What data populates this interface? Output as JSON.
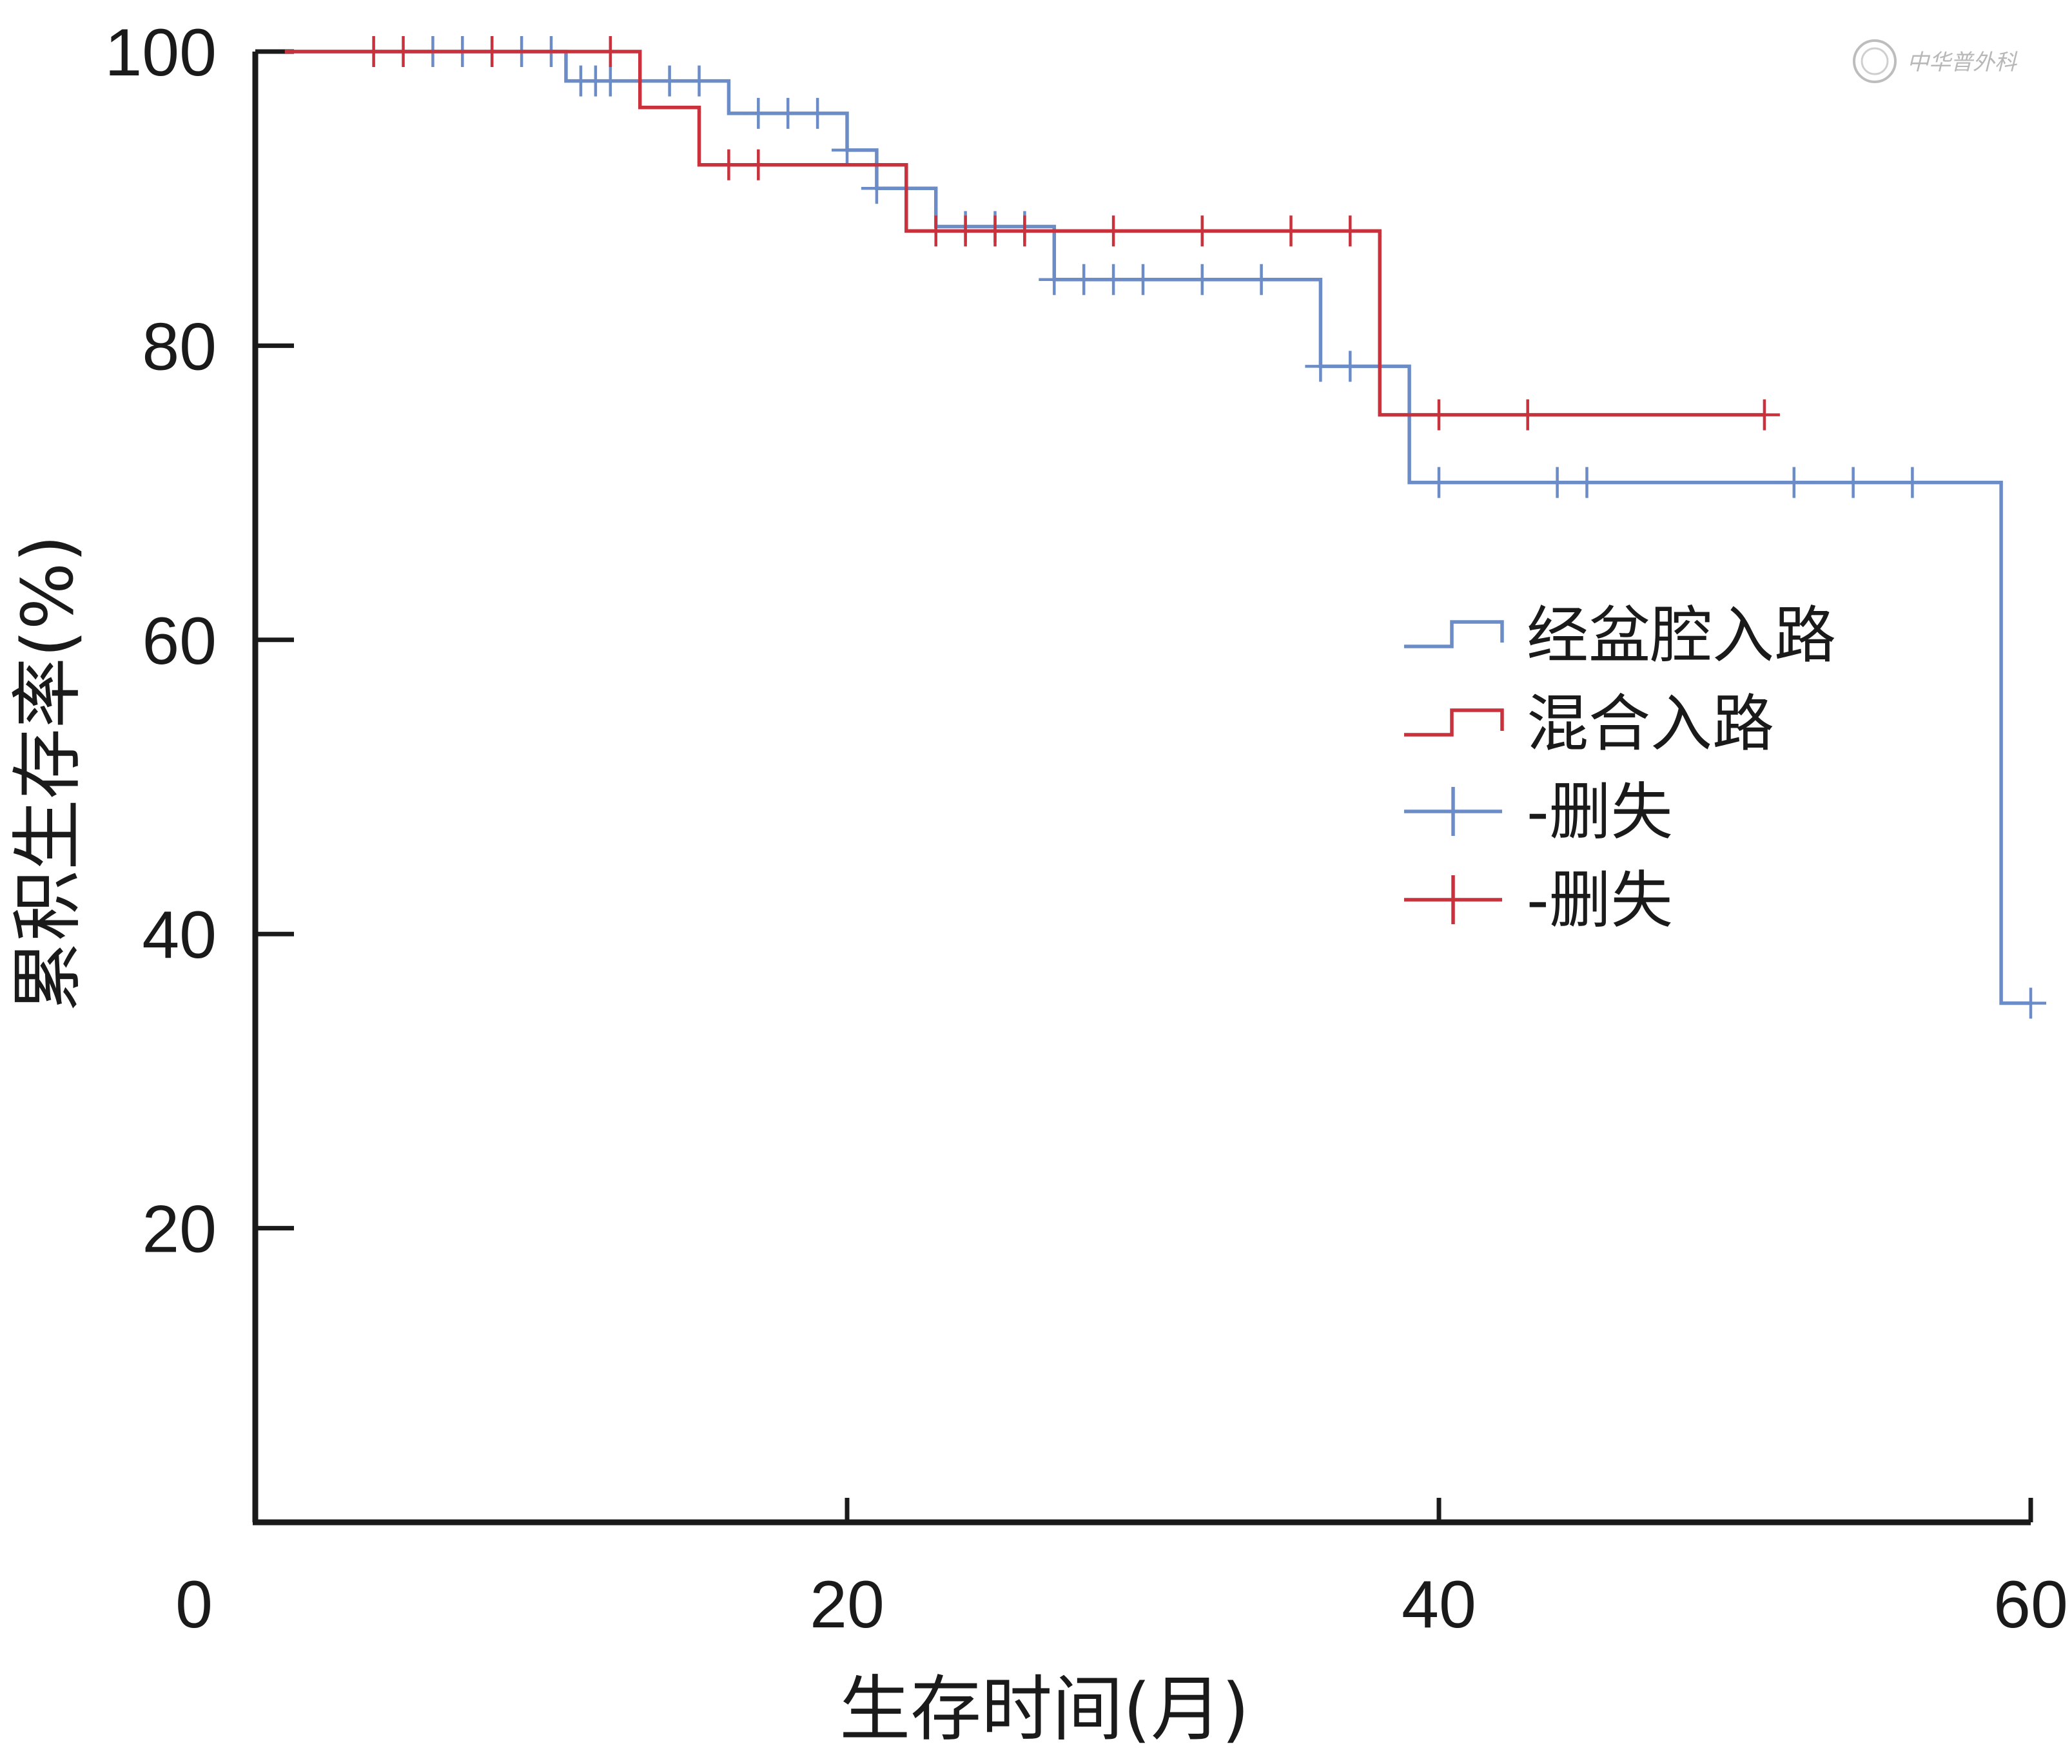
{
  "watermark": {
    "text": "中华普外科"
  },
  "chart_data": {
    "type": "line",
    "subtype": "kaplan-meier",
    "title": "",
    "xlabel": "生存时间(月)",
    "ylabel": "累积生存率(%)",
    "xlim": [
      0,
      60
    ],
    "ylim": [
      0,
      100
    ],
    "xticks": [
      0,
      20,
      40,
      60
    ],
    "yticks": [
      20,
      40,
      60,
      80,
      100
    ],
    "grid": false,
    "legend_position": "right",
    "series": [
      {
        "name": "经盆腔入路",
        "color": "#6b8cc7",
        "step_x": [
          1,
          10.5,
          12,
          16,
          20,
          21,
          23,
          27,
          36,
          39,
          59,
          60
        ],
        "step_y": [
          100,
          98,
          98,
          95.8,
          93.3,
          90.7,
          88.1,
          84.5,
          78.6,
          70.7,
          35.3,
          35.3
        ],
        "censored_x": [
          6,
          7,
          8,
          9,
          10,
          11,
          11.5,
          12,
          13,
          14,
          15,
          17,
          18,
          19,
          20,
          21,
          24,
          25,
          26,
          27,
          28,
          29,
          30,
          32,
          34,
          36,
          37,
          38,
          40,
          44,
          45,
          52,
          54,
          56,
          60
        ],
        "censored_y": [
          100,
          100,
          100,
          100,
          100,
          98,
          98,
          98,
          98,
          98,
          98,
          95.8,
          95.8,
          95.8,
          93.3,
          90.7,
          88.1,
          88.1,
          88.1,
          84.5,
          84.5,
          84.5,
          84.5,
          84.5,
          84.5,
          78.6,
          78.6,
          78.6,
          70.7,
          70.7,
          70.7,
          70.7,
          70.7,
          70.7,
          35.3
        ]
      },
      {
        "name": "混合入路",
        "color": "#c8323c",
        "step_x": [
          1,
          13,
          15,
          22,
          38,
          51
        ],
        "step_y": [
          100,
          96.2,
          92.3,
          87.8,
          75.3,
          75.3
        ],
        "censored_x": [
          4,
          5,
          8,
          12,
          16,
          17,
          23,
          24,
          25,
          26,
          29,
          32,
          35,
          37,
          40,
          43,
          51
        ],
        "censored_y": [
          100,
          100,
          100,
          100,
          92.3,
          92.3,
          87.8,
          87.8,
          87.8,
          87.8,
          87.8,
          87.8,
          87.8,
          87.8,
          75.3,
          75.3,
          75.3
        ]
      }
    ],
    "legend": [
      {
        "label": "经盆腔入路",
        "symbol": "step",
        "color": "#6b8cc7"
      },
      {
        "label": "混合入路",
        "symbol": "step",
        "color": "#c8323c"
      },
      {
        "label": "-删失",
        "symbol": "cross",
        "color": "#6b8cc7"
      },
      {
        "label": "-删失",
        "symbol": "cross",
        "color": "#c8323c"
      }
    ]
  }
}
